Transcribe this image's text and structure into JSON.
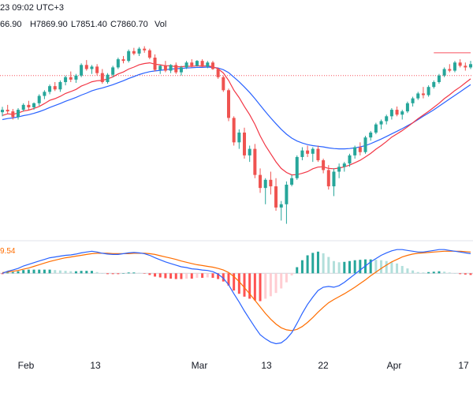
{
  "header": {
    "timestamp": "23 09:02 UTC+3",
    "open": "66.90",
    "high": "H7869.90",
    "low": "L7851.40",
    "close": "C7860.70",
    "volume_label": "Vol"
  },
  "macd_value": "9.54",
  "colors": {
    "bull": "#26a69a",
    "bear": "#ef5350",
    "fast_ma": "#f23645",
    "slow_ma": "#2962ff",
    "macd_line": "#2962ff",
    "signal_line": "#ff6d00",
    "price_line": "#f7525f"
  },
  "chart_data": [
    {
      "type": "candlestick",
      "series_count": 1,
      "reference_price_line": 7330,
      "resistance_segment": 7470,
      "note_units": "index points",
      "candles": [
        [
          7105,
          7138,
          7080,
          7120
        ],
        [
          7120,
          7150,
          7095,
          7110
        ],
        [
          7110,
          7125,
          7060,
          7075
        ],
        [
          7075,
          7130,
          7060,
          7120
        ],
        [
          7120,
          7160,
          7110,
          7150
        ],
        [
          7150,
          7175,
          7120,
          7135
        ],
        [
          7135,
          7165,
          7120,
          7160
        ],
        [
          7160,
          7215,
          7145,
          7205
        ],
        [
          7205,
          7240,
          7185,
          7230
        ],
        [
          7230,
          7275,
          7215,
          7265
        ],
        [
          7265,
          7290,
          7235,
          7245
        ],
        [
          7245,
          7300,
          7230,
          7290
        ],
        [
          7290,
          7330,
          7270,
          7320
        ],
        [
          7320,
          7355,
          7290,
          7305
        ],
        [
          7305,
          7340,
          7285,
          7330
        ],
        [
          7330,
          7405,
          7320,
          7395
        ],
        [
          7395,
          7425,
          7360,
          7370
        ],
        [
          7370,
          7395,
          7340,
          7385
        ],
        [
          7385,
          7400,
          7330,
          7345
        ],
        [
          7345,
          7370,
          7280,
          7290
        ],
        [
          7290,
          7345,
          7280,
          7335
        ],
        [
          7335,
          7390,
          7320,
          7380
        ],
        [
          7380,
          7440,
          7370,
          7430
        ],
        [
          7430,
          7450,
          7405,
          7420
        ],
        [
          7420,
          7490,
          7410,
          7480
        ],
        [
          7480,
          7500,
          7455,
          7465
        ],
        [
          7465,
          7505,
          7450,
          7495
        ],
        [
          7495,
          7510,
          7470,
          7485
        ],
        [
          7485,
          7495,
          7430,
          7440
        ],
        [
          7440,
          7460,
          7355,
          7365
        ],
        [
          7365,
          7395,
          7340,
          7390
        ],
        [
          7390,
          7420,
          7350,
          7360
        ],
        [
          7360,
          7400,
          7345,
          7395
        ],
        [
          7395,
          7410,
          7340,
          7350
        ],
        [
          7350,
          7390,
          7330,
          7380
        ],
        [
          7380,
          7420,
          7370,
          7410
        ],
        [
          7410,
          7430,
          7380,
          7390
        ],
        [
          7390,
          7425,
          7385,
          7420
        ],
        [
          7420,
          7430,
          7380,
          7385
        ],
        [
          7385,
          7420,
          7375,
          7410
        ],
        [
          7410,
          7420,
          7365,
          7370
        ],
        [
          7370,
          7380,
          7310,
          7320
        ],
        [
          7320,
          7330,
          7230,
          7240
        ],
        [
          7240,
          7250,
          7050,
          7070
        ],
        [
          7070,
          7080,
          6900,
          6920
        ],
        [
          6920,
          7000,
          6880,
          6980
        ],
        [
          6980,
          7010,
          6820,
          6840
        ],
        [
          6840,
          6900,
          6800,
          6880
        ],
        [
          6880,
          6910,
          6700,
          6720
        ],
        [
          6720,
          6760,
          6610,
          6640
        ],
        [
          6640,
          6700,
          6540,
          6690
        ],
        [
          6690,
          6740,
          6600,
          6650
        ],
        [
          6650,
          6700,
          6500,
          6520
        ],
        [
          6520,
          6560,
          6440,
          6540
        ],
        [
          6540,
          6680,
          6420,
          6660
        ],
        [
          6660,
          6720,
          6650,
          6700
        ],
        [
          6700,
          6840,
          6690,
          6830
        ],
        [
          6830,
          6890,
          6810,
          6870
        ],
        [
          6870,
          6900,
          6830,
          6850
        ],
        [
          6850,
          6890,
          6800,
          6880
        ],
        [
          6880,
          6900,
          6800,
          6810
        ],
        [
          6810,
          6820,
          6730,
          6750
        ],
        [
          6750,
          6780,
          6630,
          6650
        ],
        [
          6650,
          6760,
          6590,
          6740
        ],
        [
          6740,
          6790,
          6700,
          6770
        ],
        [
          6770,
          6800,
          6740,
          6790
        ],
        [
          6790,
          6850,
          6770,
          6840
        ],
        [
          6840,
          6900,
          6820,
          6890
        ],
        [
          6890,
          6920,
          6840,
          6860
        ],
        [
          6860,
          6960,
          6850,
          6950
        ],
        [
          6950,
          6990,
          6930,
          6980
        ],
        [
          6980,
          7040,
          6970,
          7030
        ],
        [
          7030,
          7060,
          7000,
          7050
        ],
        [
          7050,
          7090,
          7030,
          7080
        ],
        [
          7080,
          7130,
          7060,
          7120
        ],
        [
          7120,
          7140,
          7080,
          7090
        ],
        [
          7090,
          7120,
          7060,
          7110
        ],
        [
          7110,
          7170,
          7100,
          7160
        ],
        [
          7160,
          7200,
          7140,
          7190
        ],
        [
          7190,
          7230,
          7180,
          7220
        ],
        [
          7220,
          7260,
          7190,
          7210
        ],
        [
          7210,
          7270,
          7200,
          7260
        ],
        [
          7260,
          7300,
          7250,
          7290
        ],
        [
          7290,
          7340,
          7280,
          7330
        ],
        [
          7330,
          7380,
          7320,
          7370
        ],
        [
          7370,
          7400,
          7350,
          7360
        ],
        [
          7360,
          7420,
          7350,
          7410
        ],
        [
          7410,
          7430,
          7380,
          7390
        ],
        [
          7390,
          7410,
          7360,
          7380
        ],
        [
          7380,
          7420,
          7370,
          7400
        ]
      ],
      "fast_ma": [
        7085,
        7095,
        7092,
        7100,
        7112,
        7118,
        7128,
        7140,
        7158,
        7178,
        7188,
        7202,
        7220,
        7232,
        7245,
        7265,
        7278,
        7292,
        7298,
        7300,
        7310,
        7322,
        7340,
        7352,
        7370,
        7382,
        7396,
        7404,
        7408,
        7400,
        7396,
        7390,
        7390,
        7384,
        7384,
        7388,
        7386,
        7390,
        7388,
        7390,
        7384,
        7372,
        7346,
        7300,
        7240,
        7195,
        7140,
        7090,
        7030,
        6960,
        6900,
        6850,
        6800,
        6760,
        6735,
        6720,
        6722,
        6730,
        6740,
        6758,
        6768,
        6770,
        6760,
        6758,
        6762,
        6770,
        6780,
        6795,
        6810,
        6830,
        6852,
        6878,
        6900,
        6925,
        6952,
        6972,
        6992,
        7015,
        7040,
        7065,
        7088,
        7110,
        7135,
        7160,
        7188,
        7212,
        7238,
        7260,
        7285,
        7310
      ],
      "slow_ma": [
        7060,
        7066,
        7070,
        7076,
        7084,
        7090,
        7098,
        7108,
        7120,
        7134,
        7146,
        7158,
        7172,
        7184,
        7196,
        7210,
        7222,
        7236,
        7246,
        7254,
        7264,
        7274,
        7286,
        7298,
        7312,
        7324,
        7336,
        7346,
        7354,
        7358,
        7362,
        7366,
        7370,
        7372,
        7374,
        7376,
        7378,
        7380,
        7380,
        7382,
        7380,
        7376,
        7366,
        7348,
        7320,
        7292,
        7260,
        7226,
        7188,
        7148,
        7108,
        7070,
        7034,
        7000,
        6970,
        6946,
        6928,
        6916,
        6906,
        6900,
        6896,
        6892,
        6886,
        6882,
        6880,
        6880,
        6882,
        6886,
        6892,
        6900,
        6912,
        6926,
        6940,
        6956,
        6972,
        6988,
        7004,
        7022,
        7040,
        7060,
        7080,
        7100,
        7120,
        7142,
        7164,
        7186,
        7208,
        7230,
        7252,
        7274
      ]
    },
    {
      "type": "macd",
      "x_range": [
        0,
        89
      ],
      "ylim": [
        -200,
        70
      ],
      "macd": [
        0,
        5,
        8,
        12,
        18,
        22,
        26,
        30,
        34,
        38,
        40,
        42,
        44,
        45,
        47,
        50,
        52,
        54,
        52,
        49,
        47,
        46,
        46,
        48,
        50,
        51,
        50,
        48,
        44,
        38,
        33,
        28,
        24,
        20,
        16,
        14,
        11,
        10,
        8,
        7,
        4,
        -2,
        -12,
        -28,
        -50,
        -70,
        -92,
        -112,
        -132,
        -150,
        -160,
        -168,
        -172,
        -170,
        -160,
        -145,
        -122,
        -98,
        -76,
        -58,
        -42,
        -34,
        -32,
        -34,
        -30,
        -22,
        -12,
        -2,
        8,
        18,
        28,
        36,
        44,
        50,
        55,
        58,
        58,
        56,
        54,
        52,
        52,
        54,
        56,
        58,
        58,
        56,
        54,
        52,
        50,
        48
      ],
      "signal": [
        2,
        3,
        5,
        7,
        10,
        13,
        17,
        21,
        25,
        29,
        32,
        35,
        38,
        40,
        42,
        44,
        46,
        48,
        49,
        49,
        49,
        48,
        48,
        48,
        48,
        49,
        49,
        49,
        48,
        46,
        43,
        40,
        37,
        34,
        30,
        27,
        24,
        21,
        19,
        17,
        15,
        12,
        8,
        2,
        -8,
        -20,
        -35,
        -50,
        -66,
        -82,
        -98,
        -112,
        -124,
        -133,
        -138,
        -140,
        -137,
        -130,
        -120,
        -108,
        -95,
        -83,
        -72,
        -64,
        -57,
        -50,
        -42,
        -34,
        -25,
        -16,
        -6,
        3,
        12,
        20,
        28,
        34,
        40,
        44,
        47,
        49,
        50,
        51,
        52,
        53,
        54,
        54,
        54,
        54,
        53,
        52
      ]
    }
  ],
  "x_axis": {
    "ticks": [
      "Feb",
      "13",
      "Mar",
      "13",
      "22",
      "Apr",
      "17"
    ]
  }
}
